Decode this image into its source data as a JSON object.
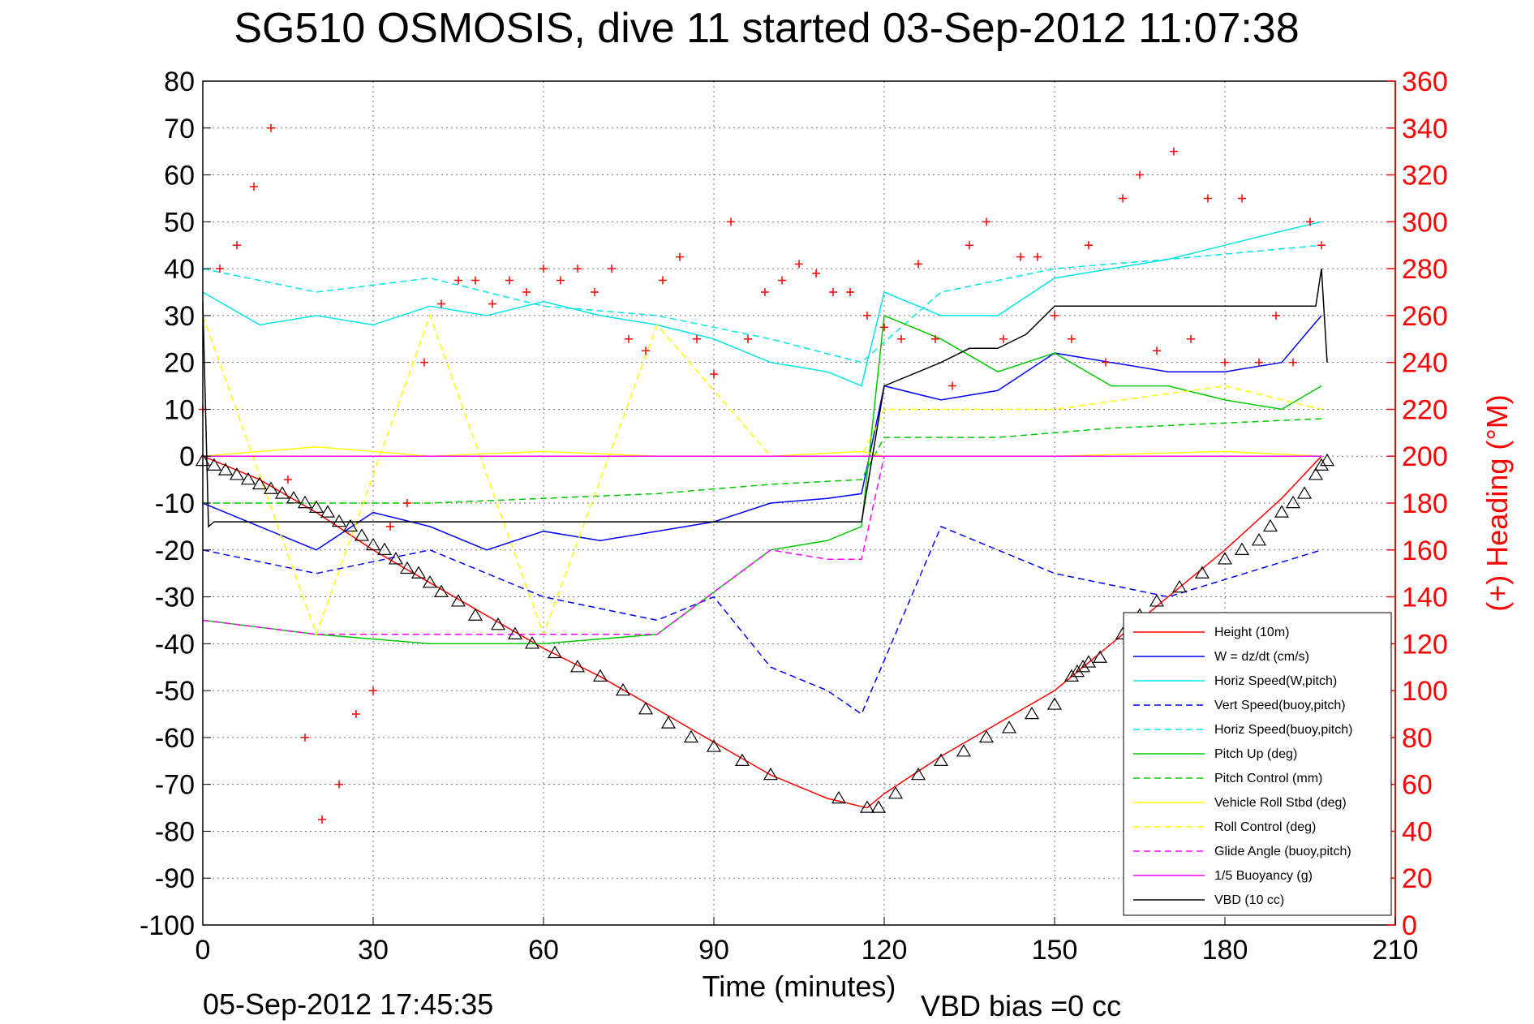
{
  "chart_data": {
    "type": "line",
    "title": "SG510 OSMOSIS, dive 11 started 03-Sep-2012 11:07:38",
    "xlabel": "Time (minutes)",
    "ylabel_right": "(+) Heading (°M)",
    "xlim": [
      0,
      210
    ],
    "ylim": [
      -100,
      80
    ],
    "ylim_right": [
      0,
      360
    ],
    "xticks": [
      "0",
      "30",
      "60",
      "90",
      "120",
      "150",
      "180",
      "210"
    ],
    "yticks": [
      "80",
      "70",
      "60",
      "50",
      "40",
      "30",
      "20",
      "10",
      "0",
      "-10",
      "-20",
      "-30",
      "-40",
      "-50",
      "-60",
      "-70",
      "-80",
      "-90",
      "-100"
    ],
    "yticks_right": [
      "360",
      "340",
      "320",
      "300",
      "280",
      "260",
      "240",
      "220",
      "200",
      "180",
      "160",
      "140",
      "120",
      "100",
      "80",
      "60",
      "40",
      "20",
      "0"
    ],
    "grid": true,
    "legend_position": "bottom-right",
    "footer_left": "05-Sep-2012 17:45:35",
    "footer_right": "VBD bias =0 cc",
    "series": [
      {
        "name": "Height (10m)",
        "color": "#ff0000",
        "style": "solid",
        "x": [
          0,
          10,
          20,
          30,
          40,
          50,
          60,
          70,
          80,
          90,
          100,
          110,
          117,
          120,
          130,
          140,
          150,
          160,
          170,
          180,
          190,
          197
        ],
        "y": [
          0,
          -5,
          -12,
          -20,
          -27,
          -34,
          -41,
          -47,
          -54,
          -61,
          -68,
          -73,
          -75,
          -72,
          -64,
          -57,
          -50,
          -40,
          -30,
          -20,
          -9,
          0
        ]
      },
      {
        "name": "W = dz/dt (cm/s)",
        "color": "#0000ff",
        "style": "solid",
        "x": [
          0,
          10,
          20,
          30,
          40,
          50,
          60,
          70,
          80,
          90,
          100,
          110,
          116,
          120,
          130,
          140,
          150,
          160,
          170,
          180,
          190,
          197
        ],
        "y": [
          -10,
          -15,
          -20,
          -12,
          -15,
          -20,
          -16,
          -18,
          -16,
          -14,
          -10,
          -9,
          -8,
          15,
          12,
          14,
          22,
          20,
          18,
          18,
          20,
          30
        ]
      },
      {
        "name": "Horiz Speed(W,pitch)",
        "color": "#00e6e6",
        "style": "solid",
        "x": [
          0,
          10,
          20,
          30,
          40,
          50,
          60,
          70,
          80,
          90,
          100,
          110,
          116,
          120,
          130,
          140,
          150,
          160,
          170,
          180,
          190,
          197
        ],
        "y": [
          35,
          28,
          30,
          28,
          32,
          30,
          33,
          30,
          28,
          25,
          20,
          18,
          15,
          35,
          30,
          30,
          38,
          40,
          42,
          45,
          48,
          50
        ]
      },
      {
        "name": "Vert Speed(buoy,pitch)",
        "color": "#0000ff",
        "style": "dashed",
        "x": [
          0,
          20,
          40,
          60,
          80,
          90,
          100,
          110,
          116,
          130,
          150,
          170,
          197
        ],
        "y": [
          -20,
          -25,
          -20,
          -30,
          -35,
          -30,
          -45,
          -50,
          -55,
          -15,
          -25,
          -30,
          -20
        ]
      },
      {
        "name": "Horiz Speed(buoy,pitch)",
        "color": "#00e6e6",
        "style": "dashed",
        "x": [
          0,
          20,
          40,
          60,
          80,
          100,
          116,
          130,
          150,
          170,
          197
        ],
        "y": [
          40,
          35,
          38,
          32,
          30,
          25,
          20,
          35,
          40,
          42,
          45
        ]
      },
      {
        "name": "Pitch Up (deg)",
        "color": "#00c800",
        "style": "solid",
        "x": [
          0,
          20,
          40,
          60,
          80,
          100,
          110,
          116,
          120,
          130,
          140,
          150,
          160,
          170,
          180,
          190,
          197
        ],
        "y": [
          -35,
          -38,
          -40,
          -40,
          -38,
          -20,
          -18,
          -15,
          30,
          25,
          18,
          22,
          15,
          15,
          12,
          10,
          15
        ]
      },
      {
        "name": "Pitch Control (mm)",
        "color": "#00c800",
        "style": "dashed",
        "x": [
          0,
          40,
          80,
          100,
          116,
          120,
          140,
          160,
          197
        ],
        "y": [
          -10,
          -10,
          -8,
          -6,
          -5,
          4,
          4,
          6,
          8
        ]
      },
      {
        "name": "Vehicle Roll Stbd (deg)",
        "color": "#ffff00",
        "style": "solid",
        "x": [
          0,
          20,
          40,
          60,
          80,
          100,
          116,
          120,
          150,
          180,
          197
        ],
        "y": [
          0,
          2,
          0,
          1,
          0,
          0,
          1,
          0,
          0,
          1,
          0
        ]
      },
      {
        "name": "Roll Control (deg)",
        "color": "#ffff00",
        "style": "dashed",
        "x": [
          0,
          20,
          40,
          60,
          80,
          100,
          116,
          120,
          150,
          180,
          197
        ],
        "y": [
          30,
          -38,
          30,
          -38,
          28,
          0,
          0,
          10,
          10,
          15,
          10
        ]
      },
      {
        "name": "Glide Angle (buoy,pitch)",
        "color": "#ff00ff",
        "style": "dashed",
        "x": [
          0,
          20,
          40,
          60,
          80,
          100,
          110,
          116,
          120,
          197
        ],
        "y": [
          -35,
          -38,
          -38,
          -38,
          -38,
          -20,
          -22,
          -22,
          0,
          0
        ]
      },
      {
        "name": "1/5 Buoyancy (g)",
        "color": "#ff00ff",
        "style": "solid",
        "x": [
          0,
          116,
          120,
          197
        ],
        "y": [
          0,
          0,
          0,
          0
        ]
      },
      {
        "name": "VBD (10 cc)",
        "color": "#000000",
        "style": "solid",
        "x": [
          0,
          1,
          2,
          116,
          120,
          130,
          135,
          140,
          145,
          150,
          155,
          160,
          170,
          180,
          196,
          197,
          198
        ],
        "y": [
          33,
          -15,
          -14,
          -14,
          15,
          20,
          23,
          23,
          26,
          32,
          32,
          32,
          32,
          32,
          32,
          40,
          20
        ]
      }
    ],
    "heading_markers": {
      "axis": "right",
      "marker": "+",
      "color": "#ff0000",
      "x": [
        0,
        3,
        6,
        9,
        12,
        15,
        18,
        21,
        24,
        27,
        30,
        33,
        36,
        39,
        42,
        45,
        48,
        51,
        54,
        57,
        60,
        63,
        66,
        69,
        72,
        75,
        78,
        81,
        84,
        87,
        90,
        93,
        96,
        99,
        102,
        105,
        108,
        111,
        114,
        117,
        120,
        123,
        126,
        129,
        132,
        135,
        138,
        141,
        144,
        147,
        150,
        153,
        156,
        159,
        162,
        165,
        168,
        171,
        174,
        177,
        180,
        183,
        186,
        189,
        192,
        195,
        197
      ],
      "y": [
        220,
        280,
        290,
        315,
        340,
        190,
        80,
        45,
        60,
        90,
        100,
        170,
        180,
        240,
        265,
        275,
        275,
        265,
        275,
        270,
        280,
        275,
        280,
        270,
        280,
        250,
        245,
        275,
        285,
        250,
        235,
        300,
        250,
        270,
        275,
        282,
        278,
        270,
        270,
        260,
        255,
        250,
        282,
        250,
        230,
        290,
        300,
        250,
        285,
        285,
        260,
        250,
        290,
        240,
        310,
        320,
        245,
        330,
        250,
        310,
        240,
        310,
        240,
        260,
        240,
        300,
        290
      ]
    },
    "descent_markers": {
      "marker": "triangle",
      "color": "#000000",
      "x": [
        0,
        2,
        4,
        6,
        8,
        10,
        12,
        14,
        16,
        18,
        20,
        22,
        24,
        26,
        28,
        30,
        32,
        34,
        36,
        38,
        40,
        42,
        45,
        48,
        52,
        55,
        58,
        62,
        66,
        70,
        74,
        78,
        82,
        86,
        90,
        95,
        100,
        112,
        117,
        119,
        122,
        126,
        130,
        134,
        138,
        142,
        146,
        150,
        153,
        154,
        155,
        156,
        158,
        162,
        165,
        168,
        172,
        176,
        180,
        183,
        186,
        188,
        190,
        192,
        194,
        196,
        197,
        198
      ],
      "y": [
        -1,
        -2,
        -3,
        -4,
        -5,
        -6,
        -7,
        -8,
        -9,
        -10,
        -11,
        -12,
        -14,
        -15,
        -17,
        -19,
        -20,
        -22,
        -24,
        -25,
        -27,
        -29,
        -31,
        -34,
        -36,
        -38,
        -40,
        -42,
        -45,
        -47,
        -50,
        -54,
        -57,
        -60,
        -62,
        -65,
        -68,
        -73,
        -75,
        -75,
        -72,
        -68,
        -65,
        -63,
        -60,
        -58,
        -55,
        -53,
        -47,
        -46,
        -45,
        -44,
        -43,
        -38,
        -34,
        -31,
        -28,
        -25,
        -22,
        -20,
        -18,
        -15,
        -12,
        -10,
        -8,
        -4,
        -2,
        -1
      ]
    }
  }
}
